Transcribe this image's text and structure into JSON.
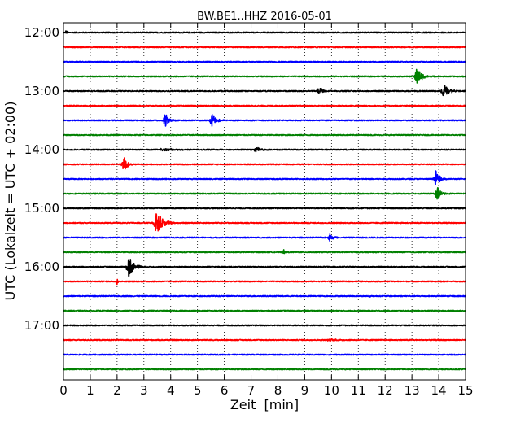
{
  "chart_data": {
    "type": "line",
    "title": "BW.BE1..HHZ 2016-05-01",
    "xlabel": "Zeit  [min]",
    "ylabel": "UTC (Lokalzeit = UTC + 02:00)",
    "xlim": [
      0,
      15
    ],
    "x_ticks": [
      "0",
      "1",
      "2",
      "3",
      "4",
      "5",
      "6",
      "7",
      "8",
      "9",
      "10",
      "11",
      "12",
      "13",
      "14",
      "15"
    ],
    "y_tick_labels": [
      "12:00",
      "13:00",
      "14:00",
      "15:00",
      "16:00",
      "17:00"
    ],
    "grid": "vertical dotted",
    "trace_colors": [
      "#000000",
      "#ff0000",
      "#0000ff",
      "#008000"
    ],
    "traces_start": "12:00",
    "trace_interval_min": 15,
    "trace_count": 24,
    "events": [
      {
        "trace": 4,
        "time": 9.55,
        "amp": 0.55,
        "width": 0.12
      },
      {
        "trace": 4,
        "time": 14.2,
        "amp": 0.7,
        "width": 0.18
      },
      {
        "trace": 3,
        "time": 13.2,
        "amp": 0.85,
        "width": 0.18
      },
      {
        "trace": 6,
        "time": 3.8,
        "amp": 0.7,
        "width": 0.14
      },
      {
        "trace": 6,
        "time": 5.55,
        "amp": 0.85,
        "width": 0.14
      },
      {
        "trace": 8,
        "time": 7.2,
        "amp": 0.35,
        "width": 0.15
      },
      {
        "trace": 8,
        "time": 3.8,
        "amp": 0.12,
        "width": 0.5
      },
      {
        "trace": 9,
        "time": 2.25,
        "amp": 0.85,
        "width": 0.12
      },
      {
        "trace": 10,
        "time": 13.9,
        "amp": 0.9,
        "width": 0.14
      },
      {
        "trace": 11,
        "time": 13.95,
        "amp": 0.7,
        "width": 0.14
      },
      {
        "trace": 13,
        "time": 3.5,
        "amp": 1.2,
        "width": 0.22
      },
      {
        "trace": 14,
        "time": 9.95,
        "amp": 0.4,
        "width": 0.14
      },
      {
        "trace": 15,
        "time": 8.2,
        "amp": 0.35,
        "width": 0.05
      },
      {
        "trace": 16,
        "time": 2.45,
        "amp": 1.0,
        "width": 0.2
      },
      {
        "trace": 17,
        "time": 2.0,
        "amp": 0.35,
        "width": 0.04
      },
      {
        "trace": 0,
        "time": 0.1,
        "amp": 0.2,
        "width": 0.06
      },
      {
        "trace": 21,
        "time": 10.0,
        "amp": 0.12,
        "width": 0.3
      },
      {
        "trace": 18,
        "time": 11.4,
        "amp": 0.12,
        "width": 0.05
      }
    ]
  }
}
